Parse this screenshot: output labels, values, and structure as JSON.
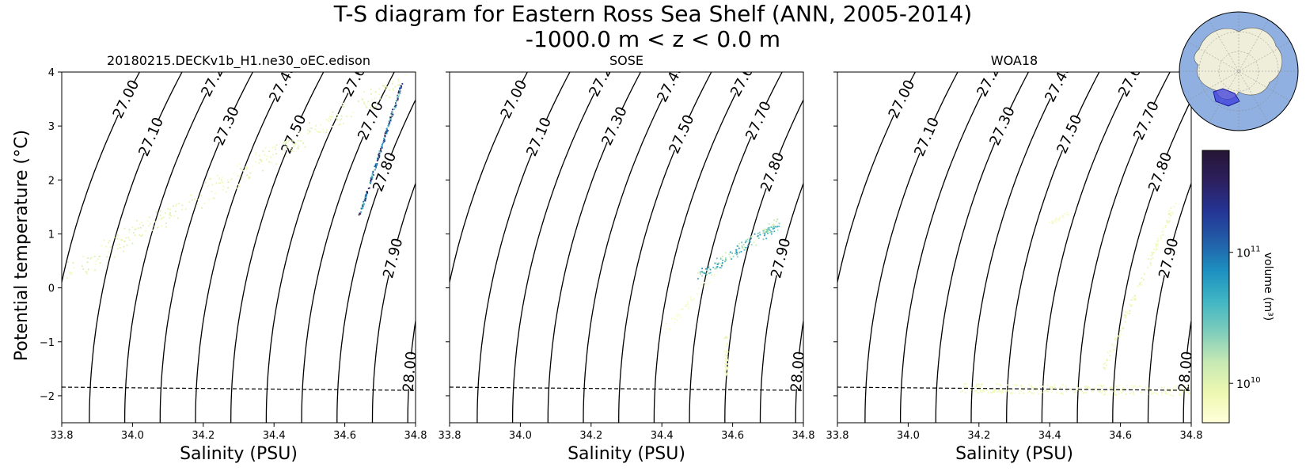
{
  "figure": {
    "title_line1": "T-S diagram for Eastern Ross Sea Shelf (ANN, 2005-2014)",
    "title_line2": "-1000.0 m < z < 0.0 m",
    "ylabel": "Potential temperature ($^\\circ$C)",
    "ylabel_display": "Potential temperature (°C)",
    "xlabel": "Salinity (PSU)"
  },
  "colorbar": {
    "label": "volume (m³)",
    "ticks": [
      {
        "base": "10",
        "exp": "10",
        "value": 10000000000.0
      },
      {
        "base": "10",
        "exp": "11",
        "value": 100000000000.0
      }
    ],
    "range": [
      5000000000.0,
      600000000000.0
    ],
    "colormap": [
      "#ffffd9",
      "#edf8b1",
      "#c7e9b4",
      "#7fcdbb",
      "#41b6c4",
      "#1d91c0",
      "#225ea8",
      "#253494",
      "#2c1f5e",
      "#261634"
    ]
  },
  "inset_map": {
    "description_label": "Antarctica region map",
    "ocean_color": "#8fb0e0",
    "land_color": "#efeedb",
    "region_color": "#3b3bdc"
  },
  "chart_data": [
    {
      "type": "scatter",
      "title": "20180215.DECKv1b_H1.ne30_oEC.edison",
      "xlabel": "Salinity (PSU)",
      "ylabel": "Potential temperature (°C)",
      "xlim": [
        33.8,
        34.8
      ],
      "ylim": [
        -2.5,
        4
      ],
      "xticks": [
        "33.8",
        "34.0",
        "34.2",
        "34.4",
        "34.6",
        "34.8"
      ],
      "yticks": [
        "−2",
        "−1",
        "0",
        "1",
        "2",
        "3",
        "4"
      ],
      "freezing_line": [
        [
          33.8,
          -1.84
        ],
        [
          34.8,
          -1.9
        ]
      ],
      "density_contours": [
        "27.00",
        "27.10",
        "27.20",
        "27.30",
        "27.40",
        "27.50",
        "27.60",
        "27.70",
        "27.80",
        "27.90",
        "28.00"
      ],
      "point_groups": [
        {
          "from": [
            33.82,
            0.3
          ],
          "to": [
            34.76,
            3.85
          ],
          "n": 320,
          "spread": 0.35,
          "level": 0.12
        },
        {
          "from": [
            34.64,
            1.35
          ],
          "to": [
            34.76,
            3.8
          ],
          "n": 220,
          "spread": 0.04,
          "level": 0.62
        }
      ]
    },
    {
      "type": "scatter",
      "title": "SOSE",
      "xlabel": "Salinity (PSU)",
      "ylabel": "",
      "xlim": [
        33.8,
        34.8
      ],
      "ylim": [
        -2.5,
        4
      ],
      "xticks": [
        "33.8",
        "34.0",
        "34.2",
        "34.4",
        "34.6",
        "34.8"
      ],
      "yticks": [],
      "freezing_line": [
        [
          33.8,
          -1.84
        ],
        [
          34.8,
          -1.9
        ]
      ],
      "density_contours": [
        "27.00",
        "27.10",
        "27.20",
        "27.30",
        "27.40",
        "27.50",
        "27.60",
        "27.70",
        "27.80",
        "27.90",
        "28.00"
      ],
      "point_groups": [
        {
          "from": [
            34.5,
            0.2
          ],
          "to": [
            34.73,
            1.22
          ],
          "n": 160,
          "spread": 0.18,
          "level": 0.35
        },
        {
          "from": [
            34.58,
            -1.6
          ],
          "to": [
            34.58,
            -0.9
          ],
          "n": 40,
          "spread": 0.08,
          "level": 0.1
        },
        {
          "from": [
            34.4,
            -0.8
          ],
          "to": [
            34.55,
            0.3
          ],
          "n": 40,
          "spread": 0.12,
          "level": 0.05
        }
      ]
    },
    {
      "type": "scatter",
      "title": "WOA18",
      "xlabel": "Salinity (PSU)",
      "ylabel": "",
      "xlim": [
        33.8,
        34.8
      ],
      "ylim": [
        -2.5,
        4
      ],
      "xticks": [
        "33.8",
        "34.0",
        "34.2",
        "34.4",
        "34.6",
        "34.8"
      ],
      "yticks": [],
      "freezing_line": [
        [
          33.8,
          -1.84
        ],
        [
          34.8,
          -1.9
        ]
      ],
      "density_contours": [
        "27.00",
        "27.10",
        "27.20",
        "27.30",
        "27.40",
        "27.50",
        "27.60",
        "27.70",
        "27.80",
        "27.90",
        "28.00"
      ],
      "point_groups": [
        {
          "from": [
            34.15,
            -1.85
          ],
          "to": [
            34.8,
            -1.9
          ],
          "n": 260,
          "spread": 0.18,
          "level": 0.08
        },
        {
          "from": [
            34.55,
            -1.5
          ],
          "to": [
            34.75,
            1.55
          ],
          "n": 120,
          "spread": 0.1,
          "level": 0.1
        },
        {
          "from": [
            34.4,
            1.2
          ],
          "to": [
            34.45,
            1.4
          ],
          "n": 20,
          "spread": 0.06,
          "level": 0.05
        }
      ]
    }
  ]
}
